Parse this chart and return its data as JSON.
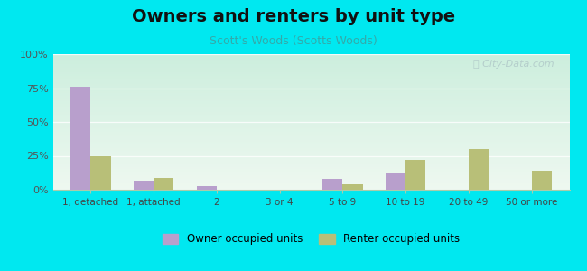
{
  "title": "Owners and renters by unit type",
  "subtitle": "Scott's Woods (Scotts Woods)",
  "categories": [
    "1, detached",
    "1, attached",
    "2",
    "3 or 4",
    "5 to 9",
    "10 to 19",
    "20 to 49",
    "50 or more"
  ],
  "owner_values": [
    76,
    7,
    3,
    0,
    8,
    12,
    0,
    0
  ],
  "renter_values": [
    25,
    9,
    0,
    0,
    4,
    22,
    30,
    14
  ],
  "owner_color": "#b89fcc",
  "renter_color": "#b8bf78",
  "bg_outer": "#00e8f0",
  "bg_chart_top": "#cceedd",
  "bg_chart_bottom": "#eef8f0",
  "title_fontsize": 14,
  "subtitle_fontsize": 9,
  "ylabel_ticks": [
    "0%",
    "25%",
    "50%",
    "75%",
    "100%"
  ],
  "ytick_values": [
    0,
    25,
    50,
    75,
    100
  ],
  "ylim": [
    0,
    100
  ],
  "bar_width": 0.32,
  "legend_owner": "Owner occupied units",
  "legend_renter": "Renter occupied units",
  "watermark": "City-Data.com",
  "grid_color": "#ddeeee",
  "subtitle_color": "#33aaaa"
}
